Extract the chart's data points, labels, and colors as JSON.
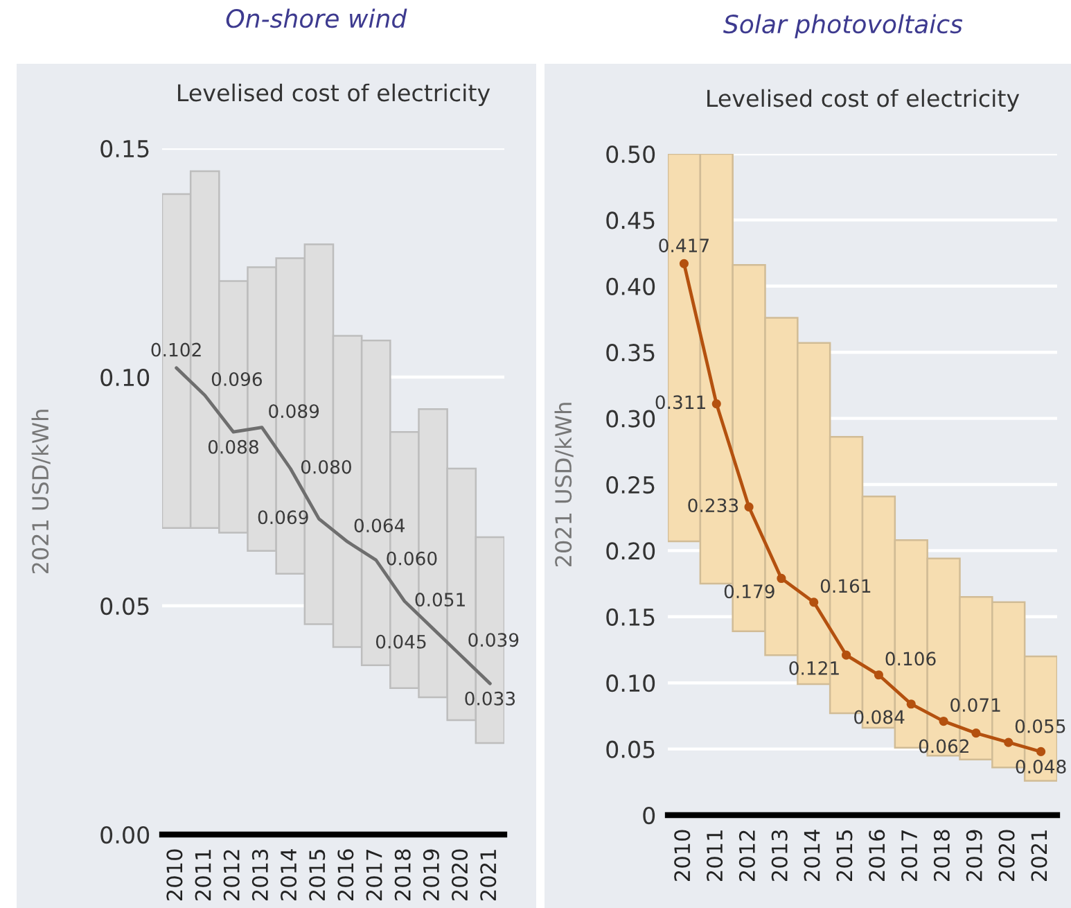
{
  "chart_data": [
    {
      "type": "bar",
      "title": "On-shore wind",
      "subtitle": "Levelised cost of electricity",
      "ylabel": "2021 USD/kWh",
      "categories": [
        "2010",
        "2011",
        "2012",
        "2013",
        "2014",
        "2015",
        "2016",
        "2017",
        "2018",
        "2019",
        "2020",
        "2021"
      ],
      "series": [
        {
          "color": "#dedede",
          "base": [
            0.067,
            0.067,
            0.066,
            0.062,
            0.057,
            0.046,
            0.041,
            0.037,
            0.032,
            0.03,
            0.025,
            0.02
          ],
          "values": [
            0.073,
            0.078,
            0.055,
            0.062,
            0.069,
            0.083,
            0.068,
            0.071,
            0.056,
            0.063,
            0.055,
            0.045
          ]
        },
        {
          "type": "line",
          "color": "#6e6e6e",
          "values": [
            0.102,
            0.096,
            0.088,
            0.089,
            0.08,
            0.069,
            0.064,
            0.06,
            0.051,
            0.045,
            0.039,
            0.033
          ],
          "value_labels": [
            "0.102",
            "0.096",
            "0.088",
            "0.089",
            "0.080",
            "0.069",
            "0.064",
            "0.060",
            "0.051",
            "0.045",
            "0.039",
            "0.033"
          ]
        }
      ],
      "ylim": [
        0,
        0.15
      ],
      "yticks": [
        {
          "value": 0,
          "label": "0.00"
        },
        0.05,
        {
          "value": 0.1,
          "label": "0.10"
        },
        0.15
      ],
      "grid": "y"
    },
    {
      "type": "bar",
      "title": "Solar photovoltaics",
      "subtitle": "Levelised cost of electricity",
      "ylabel": "2021 USD/kWh",
      "categories": [
        "2010",
        "2011",
        "2012",
        "2013",
        "2014",
        "2015",
        "2016",
        "2017",
        "2018",
        "2019",
        "2020",
        "2021"
      ],
      "series": [
        {
          "color": "#f6ddb0",
          "base": [
            0.207,
            0.175,
            0.139,
            0.121,
            0.099,
            0.077,
            0.066,
            0.051,
            0.045,
            0.042,
            0.036,
            0.026
          ],
          "values": [
            0.293,
            0.325,
            0.277,
            0.255,
            0.258,
            0.209,
            0.175,
            0.157,
            0.149,
            0.123,
            0.125,
            0.094
          ]
        },
        {
          "type": "line",
          "color": "#b4510f",
          "marker": "circle",
          "values": [
            0.417,
            0.311,
            0.233,
            0.179,
            0.161,
            0.121,
            0.106,
            0.084,
            0.071,
            0.062,
            0.055,
            0.048
          ],
          "value_labels": [
            "0.417",
            "0.311",
            "0.233",
            "0.179",
            "0.161",
            "0.121",
            "0.106",
            "0.084",
            "0.071",
            "0.062",
            "0.055",
            "0.048"
          ]
        }
      ],
      "ylim": [
        0,
        0.5
      ],
      "yticks": [
        0,
        0.05,
        {
          "value": 0.1,
          "label": "0.10"
        },
        0.15,
        {
          "value": 0.2,
          "label": "0.20"
        },
        0.25,
        {
          "value": 0.3,
          "label": "0.30"
        },
        0.35,
        {
          "value": 0.4,
          "label": "0.40"
        },
        0.45,
        {
          "value": 0.5,
          "label": "0.50"
        }
      ],
      "grid": "y"
    }
  ]
}
